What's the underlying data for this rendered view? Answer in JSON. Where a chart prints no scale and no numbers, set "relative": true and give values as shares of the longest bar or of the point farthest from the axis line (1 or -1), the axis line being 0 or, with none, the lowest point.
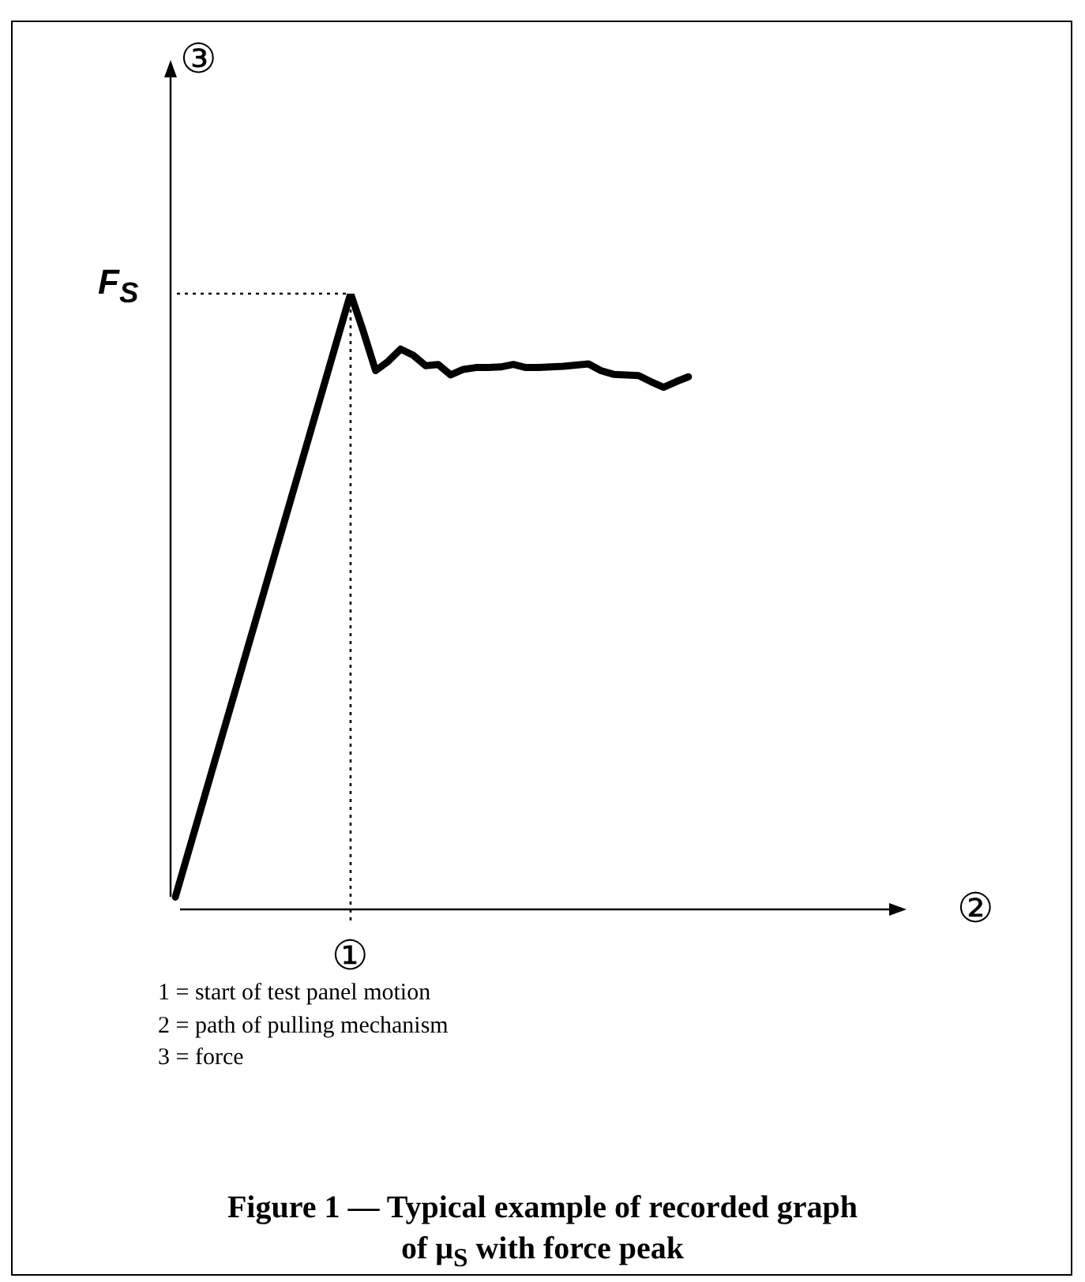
{
  "chart_data": {
    "type": "line",
    "title": "Figure 1 — Typical example of recorded graph of μ$_{S}$ with force peak",
    "annotations": [
      "①",
      "②",
      "③",
      "1 = start of test panel motion",
      "2 = path of pulling mechanism",
      "3 = force"
    ],
    "categories": [
      null,
      null,
      null,
      null,
      null,
      null,
      null,
      null,
      null,
      null,
      null,
      null,
      null,
      null,
      null,
      null,
      null,
      null,
      null,
      null,
      null,
      null,
      null,
      null,
      null,
      null,
      null,
      null,
      null,
      null,
      null,
      null,
      null,
      null,
      null,
      null,
      null,
      null,
      null,
      null,
      null,
      null
    ],
    "series": [
      {
        "color": "#000000",
        "values": [
          0.02,
          0.09,
          0.16,
          0.23,
          0.3,
          0.37,
          0.44,
          0.51,
          0.58,
          0.65,
          0.72,
          0.79,
          0.86,
          0.93,
          1.0,
          0.94,
          0.875,
          0.89,
          0.91,
          0.9,
          0.883,
          0.885,
          0.868,
          0.877,
          0.88,
          0.88,
          0.881,
          0.885,
          0.88,
          0.88,
          0.881,
          0.882,
          0.884,
          0.886,
          0.875,
          0.869,
          0.868,
          0.867,
          0.857,
          0.848,
          0.857,
          0.865
        ]
      }
    ],
    "relative": true,
    "ref_lines": [
      {
        "axis": "y",
        "value": 1,
        "label": "F$_{S}$",
        "line_style": "dotted"
      }
    ],
    "marker": "none",
    "line_style": "solid"
  }
}
